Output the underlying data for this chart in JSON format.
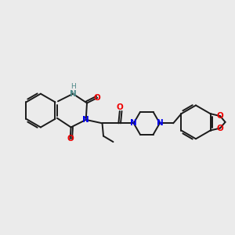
{
  "bg_color": "#ebebeb",
  "bond_color": "#1a1a1a",
  "n_color": "#0000ee",
  "nh_color": "#4d8888",
  "o_color": "#ee0000",
  "lw": 1.4,
  "xlim": [
    0,
    10
  ],
  "ylim": [
    0,
    10
  ]
}
